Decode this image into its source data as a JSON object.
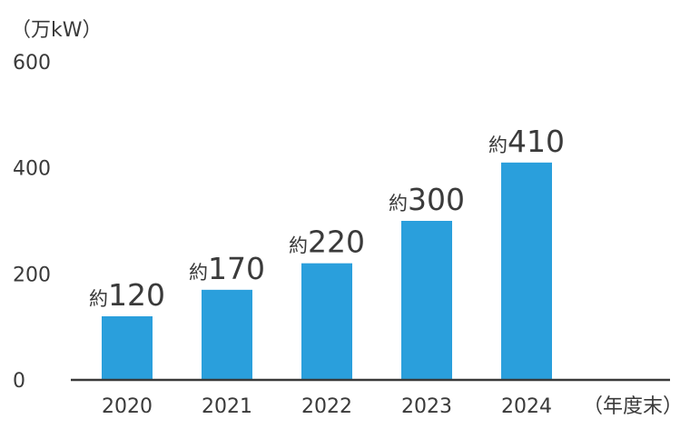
{
  "chart_data": {
    "type": "bar",
    "categories": [
      "2020",
      "2021",
      "2022",
      "2023",
      "2024"
    ],
    "values": [
      120,
      170,
      220,
      300,
      410
    ],
    "data_labels": [
      {
        "prefix": "約",
        "value": "120"
      },
      {
        "prefix": "約",
        "value": "170"
      },
      {
        "prefix": "約",
        "value": "220"
      },
      {
        "prefix": "約",
        "value": "300"
      },
      {
        "prefix": "約",
        "value": "410"
      }
    ],
    "ylabel": "（万kW）",
    "xlabel": "（年度末）",
    "ylim": [
      0,
      600
    ],
    "yticks": [
      0,
      200,
      400,
      600
    ],
    "bar_color": "#2a9fdc",
    "axis_color": "#3a3a3a",
    "grid": false
  }
}
